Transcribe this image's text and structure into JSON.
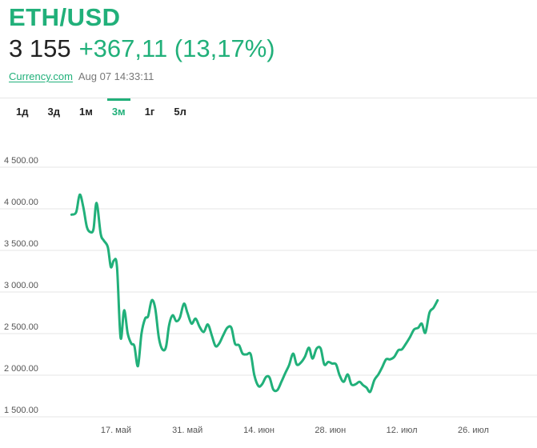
{
  "header": {
    "pair": "ETH/USD",
    "price": "3 155",
    "change": "+367,11 (13,17%)",
    "source_link": "Currency.com",
    "timestamp": "Aug 07 14:33:11"
  },
  "tabs": [
    {
      "label": "1д",
      "active": false
    },
    {
      "label": "3д",
      "active": false
    },
    {
      "label": "1м",
      "active": false
    },
    {
      "label": "3м",
      "active": true
    },
    {
      "label": "1г",
      "active": false
    },
    {
      "label": "5л",
      "active": false
    }
  ],
  "colors": {
    "accent": "#21b07a",
    "grid": "#e6e6e6"
  },
  "chart_data": {
    "type": "line",
    "ylim": [
      1500,
      4500
    ],
    "y_ticks": [
      1500,
      2000,
      2500,
      3000,
      3500,
      4000,
      4500
    ],
    "y_tick_labels": [
      "1 500.00",
      "2 000.00",
      "2 500.00",
      "3 000.00",
      "3 500.00",
      "4 000.00",
      "4 500.00"
    ],
    "x_tick_days": [
      17,
      31,
      45,
      59,
      73,
      87
    ],
    "x_tick_labels": [
      "17. май",
      "31. май",
      "14. июн",
      "28. июн",
      "12. июл",
      "26. июл"
    ],
    "xlim": [
      4,
      99
    ],
    "series": [
      {
        "values": [
          [
            8.3,
            3930
          ],
          [
            9.2,
            3960
          ],
          [
            9.9,
            4170
          ],
          [
            10.6,
            4020
          ],
          [
            11.3,
            3780
          ],
          [
            12.0,
            3720
          ],
          [
            12.6,
            3760
          ],
          [
            13.2,
            4070
          ],
          [
            14.0,
            3700
          ],
          [
            14.6,
            3620
          ],
          [
            15.4,
            3540
          ],
          [
            16.0,
            3300
          ],
          [
            16.6,
            3380
          ],
          [
            17.2,
            3300
          ],
          [
            17.9,
            2450
          ],
          [
            18.6,
            2780
          ],
          [
            19.3,
            2500
          ],
          [
            20.0,
            2380
          ],
          [
            20.6,
            2350
          ],
          [
            21.3,
            2110
          ],
          [
            22.0,
            2500
          ],
          [
            22.7,
            2680
          ],
          [
            23.3,
            2710
          ],
          [
            24.0,
            2900
          ],
          [
            24.7,
            2800
          ],
          [
            25.4,
            2450
          ],
          [
            26.1,
            2310
          ],
          [
            26.8,
            2340
          ],
          [
            27.4,
            2600
          ],
          [
            28.1,
            2720
          ],
          [
            28.8,
            2650
          ],
          [
            29.5,
            2690
          ],
          [
            30.3,
            2860
          ],
          [
            31.0,
            2750
          ],
          [
            31.8,
            2620
          ],
          [
            32.6,
            2680
          ],
          [
            33.4,
            2580
          ],
          [
            34.2,
            2520
          ],
          [
            35.0,
            2610
          ],
          [
            35.8,
            2470
          ],
          [
            36.5,
            2350
          ],
          [
            37.2,
            2380
          ],
          [
            38.0,
            2480
          ],
          [
            38.8,
            2570
          ],
          [
            39.6,
            2570
          ],
          [
            40.3,
            2380
          ],
          [
            41.1,
            2360
          ],
          [
            41.8,
            2260
          ],
          [
            42.6,
            2250
          ],
          [
            43.4,
            2250
          ],
          [
            44.1,
            2000
          ],
          [
            44.9,
            1870
          ],
          [
            45.6,
            1890
          ],
          [
            46.4,
            1980
          ],
          [
            47.1,
            1970
          ],
          [
            47.8,
            1830
          ],
          [
            48.6,
            1820
          ],
          [
            49.4,
            1920
          ],
          [
            50.2,
            2030
          ],
          [
            50.9,
            2120
          ],
          [
            51.7,
            2260
          ],
          [
            52.4,
            2130
          ],
          [
            53.2,
            2150
          ],
          [
            54.0,
            2220
          ],
          [
            54.8,
            2330
          ],
          [
            55.5,
            2200
          ],
          [
            56.3,
            2320
          ],
          [
            57.1,
            2320
          ],
          [
            57.8,
            2130
          ],
          [
            58.6,
            2160
          ],
          [
            59.3,
            2140
          ],
          [
            60.1,
            2130
          ],
          [
            60.8,
            2000
          ],
          [
            61.6,
            1920
          ],
          [
            62.4,
            2010
          ],
          [
            63.1,
            1890
          ],
          [
            63.9,
            1890
          ],
          [
            64.7,
            1920
          ],
          [
            65.4,
            1880
          ],
          [
            66.1,
            1850
          ],
          [
            66.8,
            1800
          ],
          [
            67.6,
            1940
          ],
          [
            68.4,
            2010
          ],
          [
            69.1,
            2090
          ],
          [
            69.9,
            2190
          ],
          [
            70.7,
            2190
          ],
          [
            71.5,
            2220
          ],
          [
            72.3,
            2300
          ],
          [
            73.0,
            2310
          ],
          [
            73.8,
            2380
          ],
          [
            74.6,
            2460
          ],
          [
            75.4,
            2550
          ],
          [
            76.2,
            2570
          ],
          [
            76.9,
            2620
          ],
          [
            77.6,
            2510
          ],
          [
            78.4,
            2750
          ],
          [
            79.2,
            2810
          ],
          [
            80.0,
            2900
          ]
        ]
      }
    ],
    "grid": true,
    "legend": "none"
  }
}
